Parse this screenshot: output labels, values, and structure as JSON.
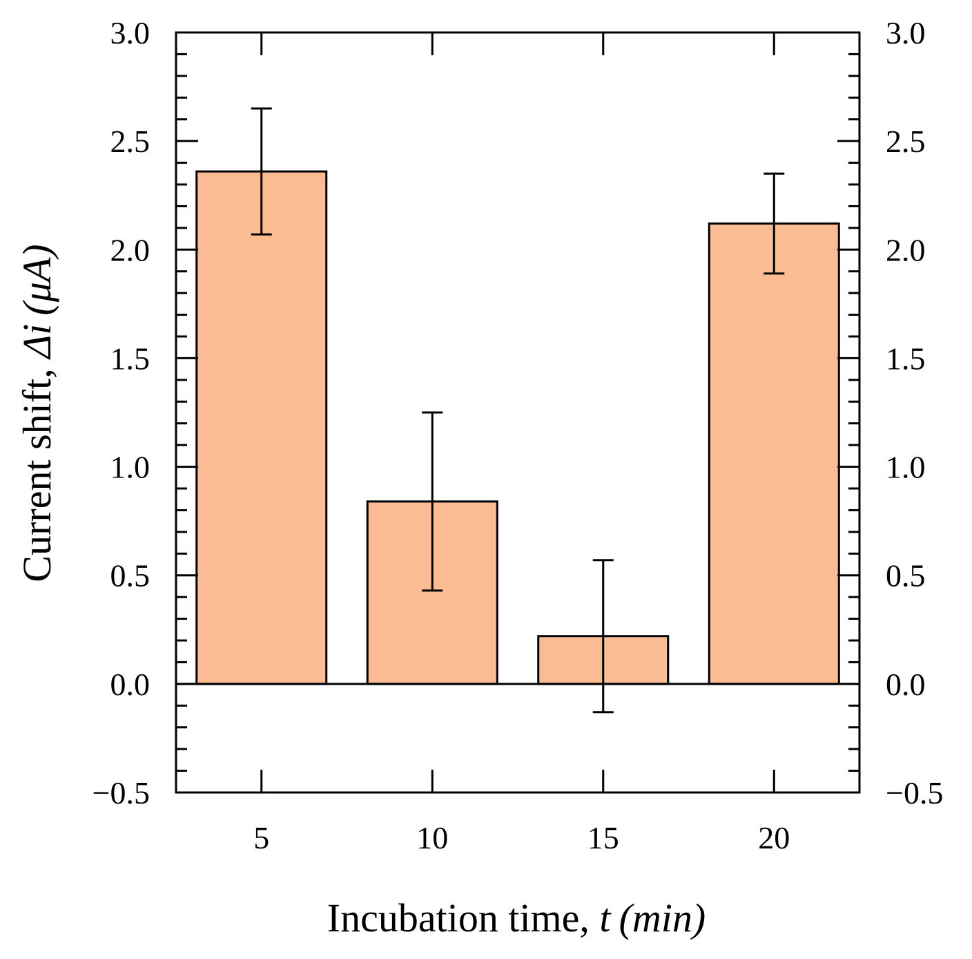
{
  "chart_data": {
    "type": "bar",
    "categories": [
      "5",
      "10",
      "15",
      "20"
    ],
    "values": [
      2.36,
      0.84,
      0.22,
      2.12
    ],
    "errors": [
      0.29,
      0.41,
      0.35,
      0.23
    ],
    "xlabel": {
      "text": "Incubation time, ",
      "var": "t",
      "unit": "(min)"
    },
    "ylabel": {
      "text": "Current shift, ",
      "var": "Δi",
      "unit": "(μA)"
    },
    "ylim": [
      -0.5,
      3.0
    ],
    "yticks": [
      -0.5,
      0.0,
      0.5,
      1.0,
      1.5,
      2.0,
      2.5,
      3.0
    ],
    "ytick_labels": [
      "−0.5",
      "0.0",
      "0.5",
      "1.0",
      "1.5",
      "2.0",
      "2.5",
      "3.0"
    ],
    "ytick_minor_step": 0.1,
    "right_axis_labels": true,
    "zero_line": true,
    "colors": {
      "bar_fill": "#FBBC94",
      "bar_edge": "#000000",
      "axis": "#000000"
    }
  }
}
